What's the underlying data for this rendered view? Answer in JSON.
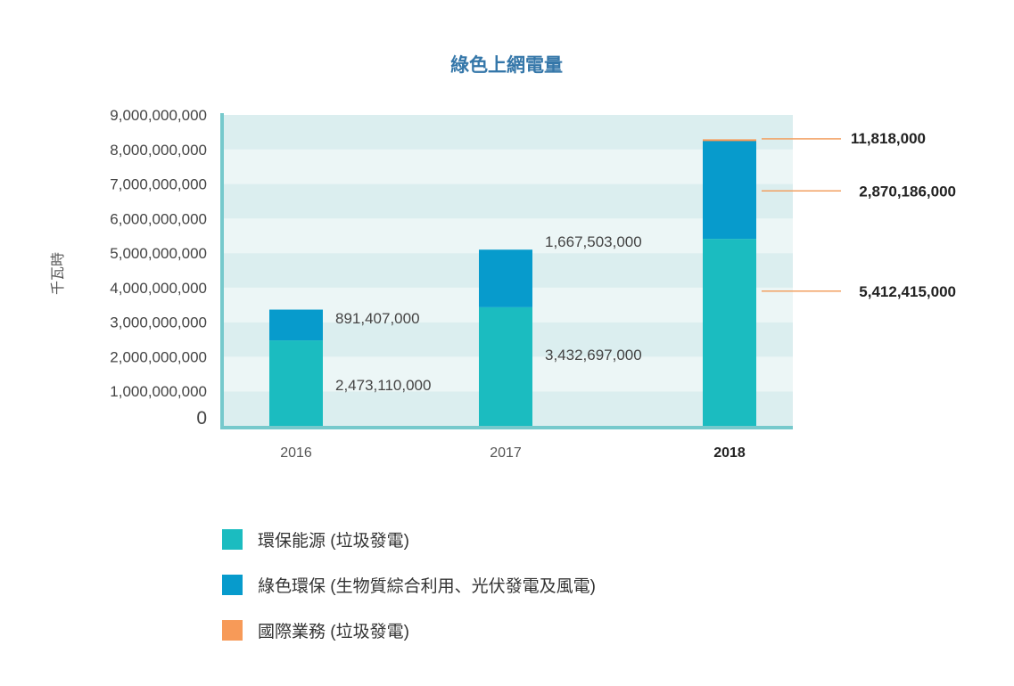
{
  "chart_data": {
    "type": "bar",
    "stacked": true,
    "title": "綠色上網電量",
    "ylabel": "千瓦時",
    "xlabel": "",
    "categories": [
      "2016",
      "2017",
      "2018"
    ],
    "highlight_category": "2018",
    "ylim": [
      0,
      9000000000
    ],
    "yticks": [
      0,
      1000000000,
      2000000000,
      3000000000,
      4000000000,
      5000000000,
      6000000000,
      7000000000,
      8000000000,
      9000000000
    ],
    "ytick_labels": [
      "0",
      "1,000,000,000",
      "2,000,000,000",
      "3,000,000,000",
      "4,000,000,000",
      "5,000,000,000",
      "6,000,000,000",
      "7,000,000,000",
      "8,000,000,000",
      "9,000,000,000"
    ],
    "background_bands": true,
    "legend_position": "bottom-left",
    "series": [
      {
        "name": "環保能源 (垃圾發電)",
        "color": "#1bbcc0",
        "values": [
          2473110000,
          3432697000,
          5412415000
        ],
        "labels": [
          "2,473,110,000",
          "3,432,697,000",
          "5,412,415,000"
        ]
      },
      {
        "name": "綠色環保 (生物質綜合利用、光伏發電及風電)",
        "color": "#079bcc",
        "values": [
          891407000,
          1667503000,
          2870186000
        ],
        "labels": [
          "891,407,000",
          "1,667,503,000",
          "2,870,186,000"
        ]
      },
      {
        "name": "國際業務 (垃圾發電)",
        "color": "#f79a58",
        "values": [
          0,
          0,
          11818000
        ],
        "labels": [
          "",
          "",
          "11,818,000"
        ]
      }
    ]
  }
}
